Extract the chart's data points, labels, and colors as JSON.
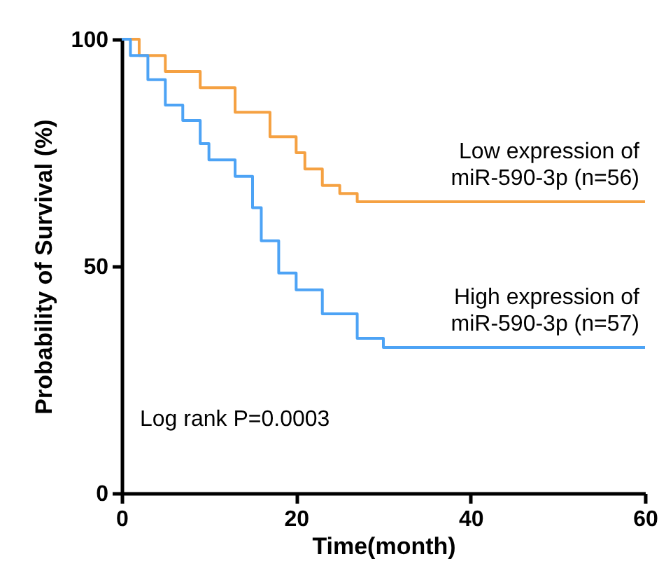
{
  "chart_data": {
    "type": "step",
    "xlabel": "Time(month)",
    "ylabel": "Probability of Survival (%)",
    "xlim": [
      0,
      60
    ],
    "xticks": [
      0,
      20,
      40,
      60
    ],
    "ylim": [
      0,
      100
    ],
    "yticks": [
      0,
      50,
      100
    ],
    "grid": false,
    "legend": false,
    "series": [
      {
        "name": "Low expression of\nmiR-590-3p (n=56)",
        "color": "#f5a142",
        "x": [
          0,
          2,
          5,
          9,
          13,
          17,
          20,
          21,
          23,
          25,
          27,
          60
        ],
        "values": [
          100,
          96.4,
          92.9,
          89.3,
          83.9,
          78.5,
          75,
          71.4,
          67.8,
          66,
          64.2,
          64.2
        ]
      },
      {
        "name": "High expression of\nmiR-590-3p (n=57)",
        "color": "#4da3f5",
        "x": [
          0,
          1,
          3,
          5,
          7,
          9,
          10,
          13,
          15,
          16,
          18,
          20,
          23,
          27,
          30,
          60
        ],
        "values": [
          100,
          96.4,
          91.1,
          85.5,
          82.1,
          77,
          73.4,
          69.8,
          62.9,
          55.6,
          48.5,
          44.8,
          39.5,
          34.1,
          32.1,
          32.1
        ]
      }
    ],
    "annotations": [
      "Log rank P=0.0003"
    ]
  }
}
